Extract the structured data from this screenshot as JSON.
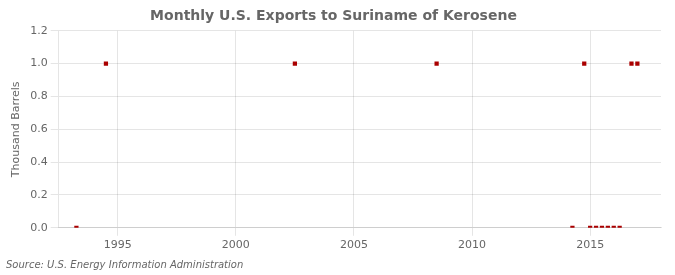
{
  "chart_data": {
    "type": "scatter",
    "title": "Monthly U.S. Exports to Suriname of Kerosene",
    "ylabel": "Thousand Barrels",
    "source": "Source: U.S. Energy Information Administration",
    "x": [
      1993.25,
      1994.5,
      2002.5,
      2008.5,
      2014.25,
      2014.75,
      2015.0,
      2015.25,
      2015.5,
      2015.75,
      2016.0,
      2016.25,
      2016.75,
      2017.0
    ],
    "values": [
      0.0,
      1.0,
      1.0,
      1.0,
      0.0,
      1.0,
      0.0,
      0.0,
      0.0,
      0.0,
      0.0,
      0.0,
      1.0,
      1.0
    ],
    "color": "#aa0000",
    "marker": "square",
    "xlim": [
      1992.5,
      2018.0
    ],
    "ylim": [
      0.0,
      1.2
    ],
    "xticks": [
      1995,
      2000,
      2005,
      2010,
      2015
    ],
    "yticks": [
      {
        "value": 0.0,
        "label": "0.0"
      },
      0.2,
      0.4,
      0.6,
      0.8,
      {
        "value": 1.0,
        "label": "1.0"
      },
      1.2
    ],
    "grid": true
  }
}
